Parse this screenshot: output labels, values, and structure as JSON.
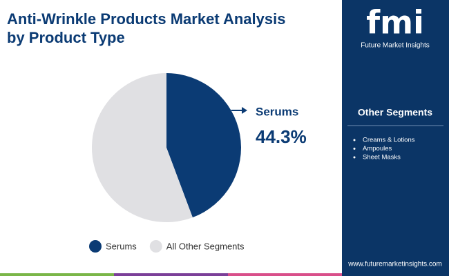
{
  "chart_data": {
    "type": "pie",
    "title": "Anti-Wrinkle Products Market Analysis by Product Type",
    "categories": [
      "Serums",
      "All Other Segments"
    ],
    "values": [
      44.3,
      55.7
    ],
    "value_labels": [
      "44.3%",
      null
    ],
    "colors": [
      "#0b3b74",
      "#e0e0e3"
    ],
    "legend": "bottom"
  },
  "sidebar": {
    "brand": "fmi",
    "brand_name": "Future Market Insights",
    "heading": "Other Segments",
    "items": [
      "Creams & Lotions",
      "Ampoules",
      "Sheet Masks"
    ],
    "url": "www.futuremarketinsights.com"
  }
}
